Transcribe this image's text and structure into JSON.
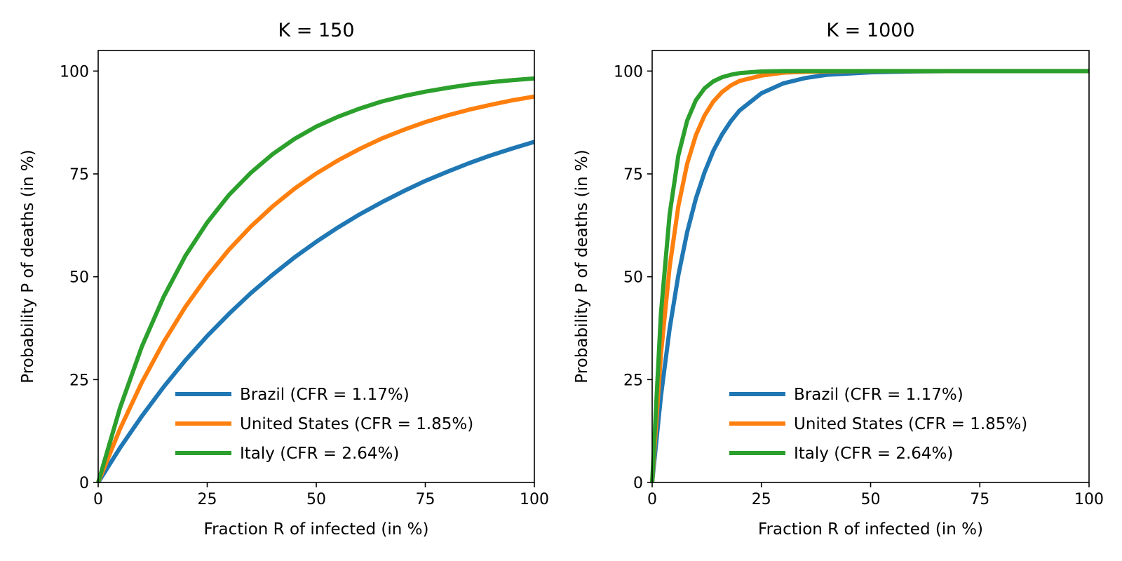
{
  "chart_data": [
    {
      "type": "line",
      "title": "K = 150",
      "K": 150,
      "xlabel": "Fraction R of infected (in %)",
      "ylabel": "Probability P of deaths (in %)",
      "xlim": [
        0,
        100
      ],
      "ylim": [
        0,
        105
      ],
      "xticks": [
        0,
        25,
        50,
        75,
        100
      ],
      "yticks": [
        0,
        25,
        50,
        75,
        100
      ],
      "x": [
        0,
        5,
        10,
        15,
        20,
        25,
        30,
        35,
        40,
        45,
        50,
        55,
        60,
        65,
        70,
        75,
        80,
        85,
        90,
        95,
        100
      ],
      "series": [
        {
          "name": "Brazil (CFR = 1.17%)",
          "color": "#1f77b4",
          "values": [
            0,
            8.4,
            16.1,
            23.2,
            29.7,
            35.6,
            41.0,
            46.0,
            50.5,
            54.7,
            58.5,
            62.0,
            65.2,
            68.1,
            70.8,
            73.3,
            75.5,
            77.6,
            79.5,
            81.2,
            82.8
          ]
        },
        {
          "name": "United States (CFR = 1.85%)",
          "color": "#ff7f0e",
          "values": [
            0,
            13.0,
            24.3,
            34.1,
            42.7,
            50.1,
            56.6,
            62.2,
            67.1,
            71.4,
            75.1,
            78.3,
            81.1,
            83.6,
            85.7,
            87.6,
            89.2,
            90.6,
            91.8,
            92.9,
            93.8
          ]
        },
        {
          "name": "Italy (CFR = 2.64%)",
          "color": "#2ca02c",
          "values": [
            0,
            18.1,
            33.0,
            45.1,
            55.1,
            63.2,
            69.9,
            75.3,
            79.8,
            83.5,
            86.5,
            88.9,
            90.9,
            92.6,
            93.9,
            95.0,
            95.9,
            96.7,
            97.3,
            97.8,
            98.2
          ]
        }
      ],
      "legend": "lower right"
    },
    {
      "type": "line",
      "title": "K = 1000",
      "K": 1000,
      "xlabel": "Fraction R of infected (in %)",
      "ylabel": "Probability P of deaths (in %)",
      "xlim": [
        0,
        100
      ],
      "ylim": [
        0,
        105
      ],
      "xticks": [
        0,
        25,
        50,
        75,
        100
      ],
      "yticks": [
        0,
        25,
        50,
        75,
        100
      ],
      "x": [
        0,
        2,
        4,
        6,
        8,
        10,
        12,
        14,
        16,
        18,
        20,
        25,
        30,
        35,
        40,
        50,
        60,
        70,
        80,
        90,
        100
      ],
      "series": [
        {
          "name": "Brazil (CFR = 1.17%)",
          "color": "#1f77b4",
          "values": [
            0,
            20.9,
            37.4,
            50.4,
            60.8,
            69.0,
            75.4,
            80.6,
            84.6,
            87.8,
            90.4,
            94.6,
            97.0,
            98.3,
            99.1,
            99.7,
            99.9,
            100,
            100,
            100,
            100
          ]
        },
        {
          "name": "United States (CFR = 1.85%)",
          "color": "#ff7f0e",
          "values": [
            0,
            31.0,
            52.4,
            67.2,
            77.4,
            84.4,
            89.2,
            92.6,
            94.9,
            96.5,
            97.6,
            98.9,
            99.6,
            99.8,
            99.9,
            100,
            100,
            100,
            100,
            100,
            100
          ]
        },
        {
          "name": "Italy (CFR = 2.64%)",
          "color": "#2ca02c",
          "values": [
            0,
            41.0,
            65.2,
            79.5,
            87.9,
            92.9,
            95.8,
            97.5,
            98.5,
            99.1,
            99.5,
            99.9,
            100,
            100,
            100,
            100,
            100,
            100,
            100,
            100,
            100
          ]
        }
      ],
      "legend": "lower right"
    }
  ]
}
